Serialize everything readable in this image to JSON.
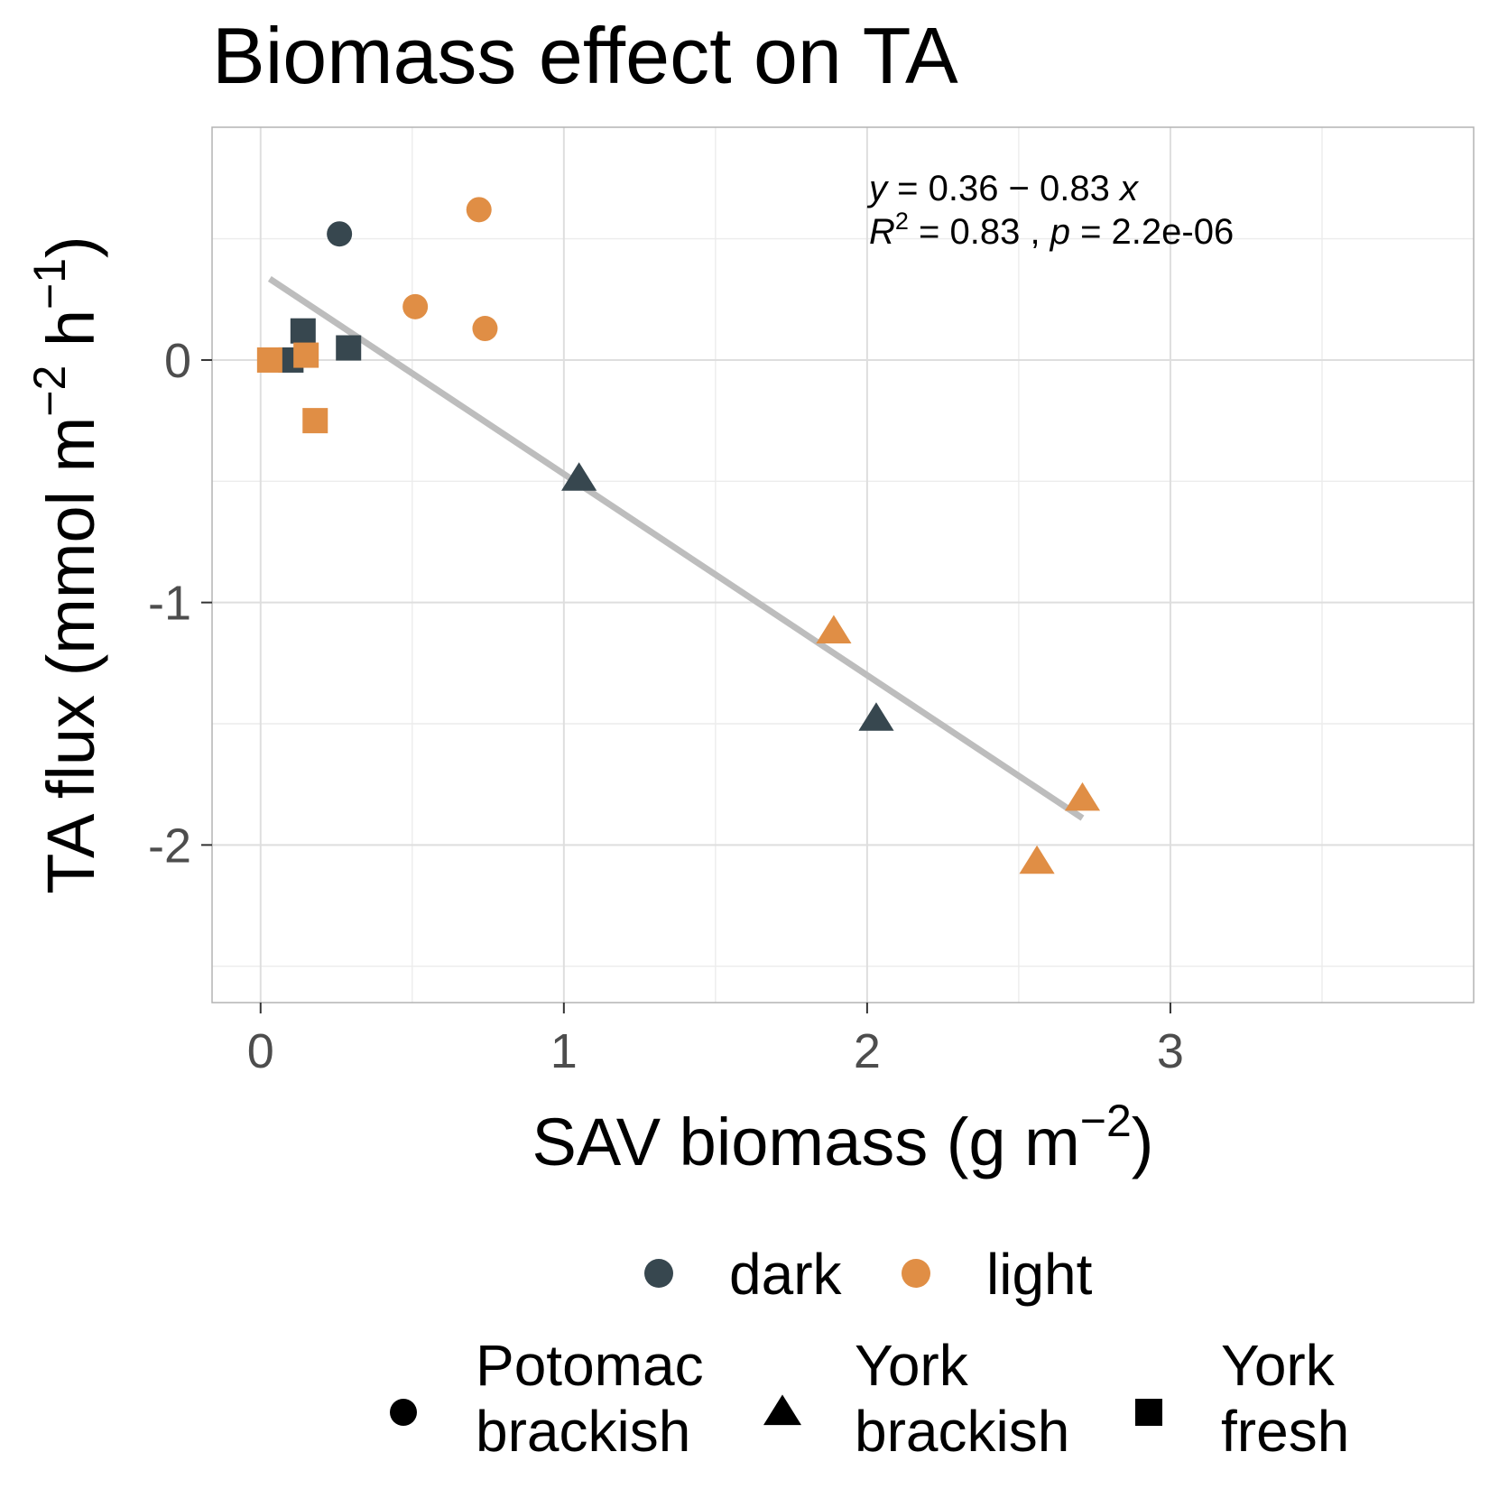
{
  "chart_data": {
    "type": "scatter",
    "title": "Biomass effect on TA",
    "xlabel": {
      "base": "SAV biomass (g m",
      "sup": "−2",
      "tail": ")"
    },
    "ylabel": {
      "p1": "TA flux (mmol m",
      "sup1": "−2",
      "p2": " h",
      "sup2": "−1",
      "p3": ")"
    },
    "xlim": [
      -0.16,
      4.0
    ],
    "ylim": [
      -2.65,
      0.96
    ],
    "x_ticks": [
      {
        "value": 0,
        "label": "0"
      },
      {
        "value": 1,
        "label": "1"
      },
      {
        "value": 2,
        "label": "2"
      },
      {
        "value": 3,
        "label": "3"
      }
    ],
    "x_minor": [
      0.5,
      1.5,
      2.5,
      3.5
    ],
    "y_ticks": [
      {
        "value": 0,
        "label": "0"
      },
      {
        "value": -1,
        "label": "-1"
      },
      {
        "value": -2,
        "label": "-2"
      }
    ],
    "y_minor": [
      0.5,
      -0.5,
      -1.5,
      -2.5
    ],
    "grid": true,
    "colors": {
      "dark": "#37474f",
      "light": "#e08e45",
      "fit_line": "#bdbdbd",
      "grid": "#dedede",
      "panel_border": "#b3b3b3"
    },
    "points": [
      {
        "x": 0.26,
        "y": 0.52,
        "treatment": "dark",
        "site": "Potomac brackish"
      },
      {
        "x": 0.72,
        "y": 0.62,
        "treatment": "light",
        "site": "Potomac brackish"
      },
      {
        "x": 0.51,
        "y": 0.22,
        "treatment": "light",
        "site": "Potomac brackish"
      },
      {
        "x": 0.74,
        "y": 0.13,
        "treatment": "light",
        "site": "Potomac brackish"
      },
      {
        "x": 1.05,
        "y": -0.49,
        "treatment": "dark",
        "site": "York brackish"
      },
      {
        "x": 2.03,
        "y": -1.48,
        "treatment": "dark",
        "site": "York brackish"
      },
      {
        "x": 1.89,
        "y": -1.12,
        "treatment": "light",
        "site": "York brackish"
      },
      {
        "x": 2.71,
        "y": -1.81,
        "treatment": "light",
        "site": "York brackish"
      },
      {
        "x": 2.56,
        "y": -2.07,
        "treatment": "light",
        "site": "York brackish"
      },
      {
        "x": 0.14,
        "y": 0.12,
        "treatment": "dark",
        "site": "York fresh"
      },
      {
        "x": 0.1,
        "y": 0.0,
        "treatment": "dark",
        "site": "York fresh"
      },
      {
        "x": 0.29,
        "y": 0.05,
        "treatment": "dark",
        "site": "York fresh"
      },
      {
        "x": 0.03,
        "y": 0.0,
        "treatment": "light",
        "site": "York fresh"
      },
      {
        "x": 0.15,
        "y": 0.02,
        "treatment": "light",
        "site": "York fresh"
      },
      {
        "x": 0.18,
        "y": -0.25,
        "treatment": "light",
        "site": "York fresh"
      }
    ],
    "fit": {
      "intercept": 0.36,
      "slope": -0.83,
      "x_range": [
        0.03,
        2.71
      ]
    },
    "annotation": {
      "line1": {
        "y": "y",
        "eq1": " = 0.36 − 0.83 ",
        "x": "x"
      },
      "line2": {
        "R": "R",
        "sup": "2",
        "eq": " = 0.83 , ",
        "p": "p",
        "peq": " = 2.2e-06"
      }
    },
    "legend": {
      "position": "bottom",
      "treatment": [
        {
          "key": "dark",
          "label": "dark"
        },
        {
          "key": "light",
          "label": "light"
        }
      ],
      "site": [
        {
          "key": "Potomac brackish",
          "shape": "circle",
          "line1": "Potomac",
          "line2": "brackish"
        },
        {
          "key": "York brackish",
          "shape": "triangle",
          "line1": "York",
          "line2": "brackish"
        },
        {
          "key": "York fresh",
          "shape": "square",
          "line1": "York",
          "line2": "fresh"
        }
      ]
    }
  }
}
